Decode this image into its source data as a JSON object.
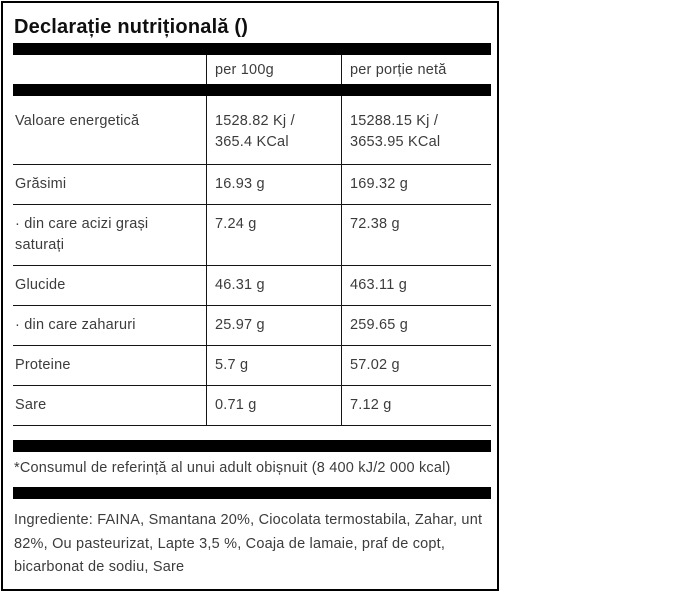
{
  "title": "Declarație nutrițională ()",
  "table": {
    "col_headers": [
      "per 100g",
      "per porție netă"
    ],
    "rows": [
      {
        "label": "Valoare energetică",
        "per_100g": "1528.82 Kj / 365.4 KCal",
        "per_portie": "15288.15 Kj / 3653.95 KCal"
      },
      {
        "label": "Grăsimi",
        "per_100g": "16.93 g",
        "per_portie": "169.32 g"
      },
      {
        "label": "· din care acizi grași saturați",
        "per_100g": "7.24 g",
        "per_portie": "72.38 g"
      },
      {
        "label": "Glucide",
        "per_100g": "46.31 g",
        "per_portie": "463.11 g"
      },
      {
        "label": "· din care zaharuri",
        "per_100g": "25.97 g",
        "per_portie": "259.65 g"
      },
      {
        "label": "Proteine",
        "per_100g": "5.7 g",
        "per_portie": "57.02 g"
      },
      {
        "label": "Sare",
        "per_100g": "0.71 g",
        "per_portie": "7.12 g"
      }
    ]
  },
  "footnote": "*Consumul de referință al unui adult obișnuit (8 400 kJ/2 000 kcal)",
  "ingredients": "Ingrediente: FAINA, Smantana 20%, Ciocolata termostabila, Zahar, unt 82%, Ou pasteurizat, Lapte 3,5 %, Coaja de lamaie, praf de copt, bicarbonat de sodiu, Sare",
  "colors": {
    "bar": "#000000",
    "border": "#000000",
    "text": "#3c3c3c",
    "title": "#0f0f0f"
  }
}
